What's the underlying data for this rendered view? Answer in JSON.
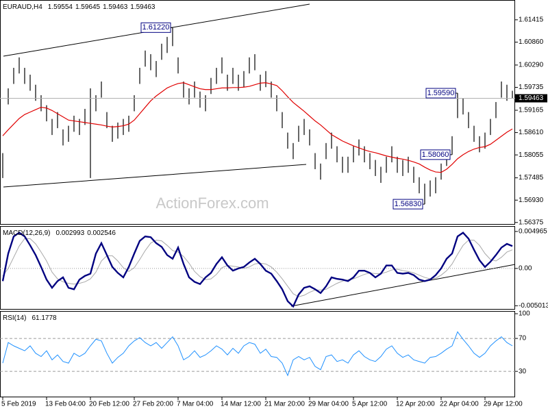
{
  "chart_data": [
    {
      "type": "ohlc",
      "title": "EURAUD,H4",
      "header_values": [
        1.59554,
        1.59645,
        1.59463,
        1.59463
      ],
      "color": "#000000",
      "high": [
        1.581,
        1.5971,
        1.6022,
        1.6048,
        1.6022,
        1.6005,
        1.598,
        1.5954,
        1.5929,
        1.5895,
        1.5912,
        1.5869,
        1.5878,
        1.5903,
        1.5895,
        1.592,
        1.5971,
        1.5954,
        1.5988,
        1.5912,
        1.5878,
        1.5886,
        1.5895,
        1.5903,
        1.5954,
        1.6022,
        1.6065,
        1.6056,
        1.6039,
        1.6082,
        1.6099,
        1.6122,
        1.6048,
        1.5988,
        1.5971,
        1.5988,
        1.5963,
        1.5954,
        1.5997,
        1.6022,
        1.6048,
        1.6005,
        1.6022,
        1.6005,
        1.6014,
        1.6048,
        1.6056,
        1.6005,
        1.6014,
        1.5988,
        1.5954,
        1.5912,
        1.5861,
        1.5835,
        1.5878,
        1.5895,
        1.5869,
        1.581,
        1.5784,
        1.5835,
        1.5861,
        1.5827,
        1.5801,
        1.5801,
        1.5827,
        1.5844,
        1.5827,
        1.581,
        1.5793,
        1.5776,
        1.5801,
        1.5827,
        1.5801,
        1.5793,
        1.5801,
        1.5776,
        1.575,
        1.5734,
        1.5742,
        1.575,
        1.5784,
        1.5818,
        1.5852,
        1.5959,
        1.5946,
        1.5912,
        1.5878,
        1.5852,
        1.5861,
        1.5895,
        1.5937,
        1.5988,
        1.598,
        1.5965
      ],
      "low": [
        1.5748,
        1.5931,
        1.5982,
        1.6008,
        1.5982,
        1.5965,
        1.594,
        1.5914,
        1.5889,
        1.5855,
        1.5872,
        1.5829,
        1.5838,
        1.5863,
        1.5855,
        1.588,
        1.5748,
        1.5914,
        1.5948,
        1.5872,
        1.5838,
        1.5846,
        1.5855,
        1.5863,
        1.5914,
        1.5982,
        1.6025,
        1.6016,
        1.5999,
        1.6042,
        1.6059,
        1.6076,
        1.6008,
        1.5948,
        1.5931,
        1.5948,
        1.5923,
        1.5914,
        1.5957,
        1.5982,
        1.6008,
        1.5965,
        1.5982,
        1.5965,
        1.5974,
        1.6008,
        1.6016,
        1.5965,
        1.5974,
        1.5948,
        1.5914,
        1.5872,
        1.5821,
        1.5795,
        1.5838,
        1.5855,
        1.5829,
        1.577,
        1.5744,
        1.5795,
        1.5821,
        1.5787,
        1.5761,
        1.5761,
        1.5787,
        1.5804,
        1.5787,
        1.577,
        1.5753,
        1.5736,
        1.5761,
        1.5787,
        1.5761,
        1.5753,
        1.5761,
        1.5736,
        1.571,
        1.5683,
        1.5702,
        1.571,
        1.5744,
        1.5778,
        1.5806,
        1.5897,
        1.5906,
        1.5872,
        1.5838,
        1.5812,
        1.5821,
        1.5855,
        1.5897,
        1.5948,
        1.594,
        1.5946
      ],
      "ma": {
        "color": "#e00000",
        "values": [
          1.5853,
          1.5868,
          1.5882,
          1.5896,
          1.5906,
          1.5912,
          1.5918,
          1.5924,
          1.5922,
          1.5916,
          1.5908,
          1.59,
          1.5892,
          1.589,
          1.5888,
          1.5886,
          1.5884,
          1.5882,
          1.588,
          1.5877,
          1.5875,
          1.5876,
          1.5878,
          1.5882,
          1.5892,
          1.5908,
          1.5924,
          1.594,
          1.5952,
          1.5962,
          1.5972,
          1.5978,
          1.5983,
          1.5985,
          1.598,
          1.5975,
          1.597,
          1.5968,
          1.5968,
          1.597,
          1.5972,
          1.5972,
          1.5973,
          1.5973,
          1.5974,
          1.5976,
          1.598,
          1.5984,
          1.5985,
          1.5982,
          1.5978,
          1.5965,
          1.595,
          1.5936,
          1.5925,
          1.5914,
          1.5902,
          1.589,
          1.588,
          1.5868,
          1.5856,
          1.5848,
          1.584,
          1.5834,
          1.5828,
          1.5823,
          1.5818,
          1.5814,
          1.5811,
          1.5807,
          1.5803,
          1.58,
          1.5797,
          1.5795,
          1.5792,
          1.5788,
          1.5783,
          1.5775,
          1.5768,
          1.5763,
          1.5762,
          1.577,
          1.5782,
          1.5796,
          1.5806,
          1.5814,
          1.582,
          1.5824,
          1.5826,
          1.5832,
          1.5842,
          1.5852,
          1.5862,
          1.587
        ]
      },
      "last_price": 1.59463,
      "annotations": [
        {
          "value": 1.6122,
          "label": "1.61220"
        },
        {
          "value": 1.5959,
          "label": "1.59590"
        },
        {
          "value": 1.5806,
          "label": "1.58060"
        },
        {
          "value": 1.5683,
          "label": "1.56830"
        }
      ],
      "watermark": "ActionForex.com",
      "ylim": [
        1.5632,
        1.6189
      ],
      "yticks": [
        1.61415,
        {
          "value": 1.6086,
          "label": "1.60860"
        },
        {
          "value": 1.6029,
          "label": "1.60290"
        },
        1.59735,
        1.59165,
        {
          "value": 1.5861,
          "label": "1.58610"
        },
        1.58055,
        1.57485,
        {
          "value": 1.5693,
          "label": "1.56930"
        },
        1.56375
      ]
    },
    {
      "type": "macd",
      "title": "MACD(12,26,9)",
      "header_values": [
        0.002993,
        0.002546
      ],
      "series": [
        {
          "color": "#000080",
          "values": [
            -0.0017,
            0.002,
            0.0043,
            0.0048,
            0.0043,
            0.0031,
            0.0018,
            0.0002,
            -0.0015,
            -0.0026,
            -0.0017,
            -0.0012,
            -0.0026,
            -0.0028,
            -0.0015,
            -0.001,
            -0.0007,
            0.002,
            0.0034,
            0.0018,
            0.0002,
            -0.0006,
            -0.0012,
            0.0002,
            0.002,
            0.0037,
            0.0043,
            0.0042,
            0.0034,
            0.0029,
            0.0018,
            0.0013,
            0.0028,
            0.0006,
            -0.0012,
            -0.0018,
            -0.0021,
            -0.0012,
            -0.0006,
            0.0006,
            0.0015,
            0.0004,
            -0.0003,
            0.0,
            0.0002,
            0.0008,
            0.0013,
            0.0006,
            -0.0003,
            -0.0007,
            -0.0017,
            -0.0028,
            -0.0044,
            -0.0051,
            -0.0035,
            -0.0026,
            -0.0024,
            -0.0028,
            -0.0033,
            -0.0024,
            -0.0012,
            -0.0014,
            -0.0015,
            -0.0017,
            -0.0012,
            -0.0003,
            -0.0003,
            -0.0006,
            -0.0012,
            -0.0007,
            0.0004,
            0.0004,
            -0.0006,
            -0.0007,
            -0.0006,
            -0.0009,
            -0.0015,
            -0.0017,
            -0.0015,
            -0.0009,
            0.0,
            0.0013,
            0.002,
            0.0043,
            0.0048,
            0.004,
            0.0025,
            0.0011,
            0.0002,
            0.0009,
            0.0018,
            0.0028,
            0.0033,
            0.003
          ]
        },
        {
          "color": "#a8a8a8",
          "values": [
            -0.001,
            0.0,
            0.0015,
            0.003,
            0.004,
            0.004,
            0.0033,
            0.0022,
            0.001,
            -0.0005,
            -0.0014,
            -0.0018,
            -0.002,
            -0.0021,
            -0.002,
            -0.0018,
            -0.0014,
            -0.0005,
            0.001,
            0.0017,
            0.0017,
            0.001,
            0.0001,
            -0.0004,
            0.0001,
            0.0012,
            0.0024,
            0.0034,
            0.0038,
            0.0037,
            0.0031,
            0.0024,
            0.0022,
            0.0016,
            0.0007,
            -0.0004,
            -0.0011,
            -0.0015,
            -0.0014,
            -0.0008,
            0.0001,
            0.0004,
            0.0003,
            0.0002,
            0.0,
            0.0002,
            0.0006,
            0.0007,
            0.0006,
            0.0002,
            -0.0005,
            -0.0014,
            -0.0024,
            -0.0034,
            -0.0038,
            -0.0036,
            -0.0032,
            -0.0029,
            -0.0029,
            -0.0028,
            -0.0024,
            -0.002,
            -0.0017,
            -0.0015,
            -0.0014,
            -0.0011,
            -0.0008,
            -0.0006,
            -0.0007,
            -0.0007,
            -0.0005,
            -0.0002,
            -0.0001,
            -0.0003,
            -0.0004,
            -0.0006,
            -0.0009,
            -0.0012,
            -0.0014,
            -0.0013,
            -0.0009,
            -0.0003,
            0.0006,
            0.0019,
            0.0031,
            0.0038,
            0.0038,
            0.0031,
            0.002,
            0.0012,
            0.001,
            0.0015,
            0.0022,
            0.0025
          ]
        }
      ],
      "levels": [
        0
      ],
      "ylim": [
        -0.00553,
        0.0056
      ],
      "yticks": [
        0.004965,
        {
          "value": 0,
          "label": "0.00"
        },
        -0.005013
      ]
    },
    {
      "type": "rsi",
      "title": "RSI(14)",
      "header_values": [
        61.1778
      ],
      "color": "#1e90ff",
      "values": [
        40,
        65,
        61,
        58,
        55,
        61,
        52,
        48,
        55,
        44,
        50,
        42,
        40,
        52,
        48,
        52,
        61,
        69,
        67,
        52,
        40,
        47,
        52,
        61,
        67,
        71,
        65,
        61,
        65,
        58,
        65,
        72,
        61,
        44,
        48,
        55,
        47,
        50,
        55,
        61,
        57,
        50,
        58,
        52,
        61,
        65,
        63,
        52,
        57,
        48,
        47,
        40,
        25,
        44,
        48,
        44,
        47,
        36,
        32,
        48,
        50,
        42,
        44,
        40,
        50,
        55,
        48,
        44,
        42,
        48,
        57,
        61,
        52,
        47,
        50,
        44,
        42,
        40,
        47,
        48,
        52,
        57,
        61,
        78,
        69,
        61,
        52,
        47,
        52,
        61,
        67,
        72,
        65,
        61
      ],
      "categories": [
        "5 Feb 2019",
        null,
        null,
        null,
        null,
        null,
        null,
        null,
        "13 Feb 04:00",
        null,
        null,
        null,
        null,
        null,
        null,
        null,
        "20 Feb 12:00",
        null,
        null,
        null,
        null,
        null,
        null,
        null,
        "27 Feb 20:00",
        null,
        null,
        null,
        null,
        null,
        null,
        null,
        "7 Mar 04:00",
        null,
        null,
        null,
        null,
        null,
        null,
        null,
        "14 Mar 12:00",
        null,
        null,
        null,
        null,
        null,
        null,
        null,
        "21 Mar 20:00",
        null,
        null,
        null,
        null,
        null,
        null,
        null,
        "29 Mar 04:00",
        null,
        null,
        null,
        null,
        null,
        null,
        null,
        "5 Apr 12:00",
        null,
        null,
        null,
        null,
        null,
        null,
        null,
        "12 Apr 20:00",
        null,
        null,
        null,
        null,
        null,
        null,
        null,
        "22 Apr 04:00",
        null,
        null,
        null,
        null,
        null,
        null,
        null,
        "29 Apr 12:00",
        null,
        null,
        null,
        null,
        null
      ],
      "levels": [
        70,
        30
      ],
      "ylim": [
        -1.5,
        102.5
      ],
      "yticks": [
        100,
        70,
        30
      ]
    }
  ]
}
